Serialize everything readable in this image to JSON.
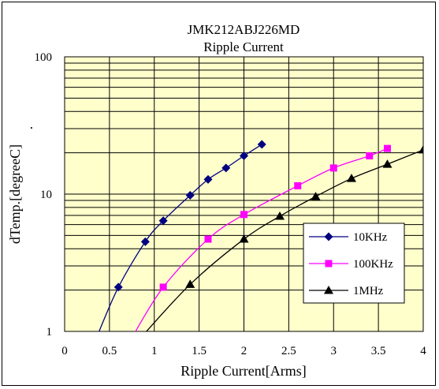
{
  "chart_data": {
    "type": "line",
    "title": "JMK212ABJ226MD",
    "subtitle": "Ripple Current",
    "xlabel": "Ripple Current[Arms]",
    "ylabel": "dTemp.[degreeC]",
    "ylabel_suffix": ".",
    "xlim": [
      0,
      4
    ],
    "ylim": [
      1,
      100
    ],
    "yscale": "log",
    "x_ticks": [
      "0",
      "0.5",
      "1",
      "1.5",
      "2",
      "2.5",
      "3",
      "3.5",
      "4"
    ],
    "y_ticks": [
      "1",
      "10",
      "100"
    ],
    "grid": true,
    "plot_background": "#ffffcc",
    "legend_position": "lower-right",
    "series": [
      {
        "name": "10KHz",
        "color": "#000080",
        "marker": "diamond",
        "x": [
          0.6,
          0.9,
          1.1,
          1.4,
          1.6,
          1.8,
          2.0,
          2.2
        ],
        "y": [
          2.1,
          4.5,
          6.4,
          9.8,
          12.8,
          15.5,
          19.0,
          23.0
        ],
        "curve_x": [
          0.37,
          0.6,
          0.9,
          1.1,
          1.4,
          1.6,
          1.8,
          2.0,
          2.2
        ],
        "curve_y": [
          0.95,
          2.1,
          4.5,
          6.4,
          9.8,
          12.8,
          15.5,
          19.0,
          23.0
        ]
      },
      {
        "name": "100KHz",
        "color": "#ff00ff",
        "marker": "square",
        "x": [
          1.1,
          1.6,
          2.0,
          2.6,
          3.0,
          3.4,
          3.6
        ],
        "y": [
          2.1,
          4.7,
          7.1,
          11.5,
          15.5,
          19.0,
          21.5
        ],
        "curve_x": [
          0.75,
          1.1,
          1.6,
          2.0,
          2.6,
          3.0,
          3.4,
          3.6
        ],
        "curve_y": [
          0.9,
          2.1,
          4.7,
          7.1,
          11.5,
          15.5,
          19.0,
          21.5
        ]
      },
      {
        "name": "1MHz",
        "color": "#000000",
        "marker": "triangle",
        "x": [
          1.4,
          2.0,
          2.4,
          2.8,
          3.2,
          3.6,
          4.0
        ],
        "y": [
          2.2,
          4.7,
          6.9,
          9.6,
          13.0,
          16.5,
          21.0
        ],
        "curve_x": [
          0.85,
          1.4,
          2.0,
          2.4,
          2.8,
          3.2,
          3.6,
          4.0
        ],
        "curve_y": [
          0.9,
          2.2,
          4.7,
          6.9,
          9.6,
          13.0,
          16.5,
          21.0
        ]
      }
    ]
  }
}
